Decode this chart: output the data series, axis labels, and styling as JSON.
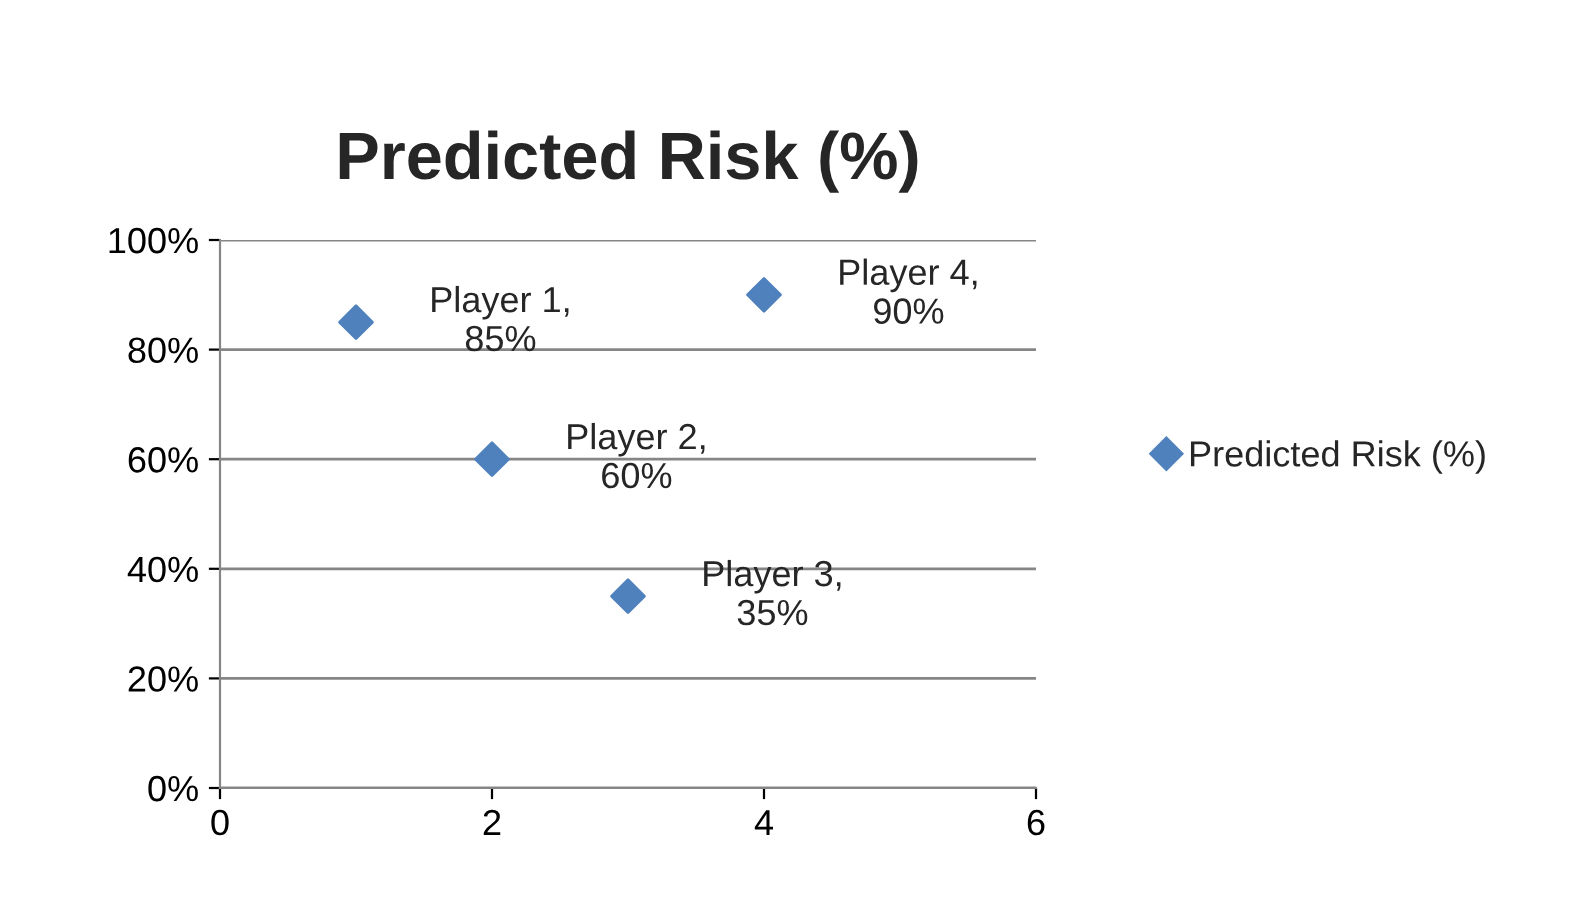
{
  "chart_data": {
    "type": "scatter",
    "title": "Predicted Risk (%)",
    "x": [
      1,
      2,
      3,
      4
    ],
    "series": [
      {
        "name": "Predicted Risk (%)",
        "color": "#4f81bd",
        "values": [
          85,
          60,
          35,
          90
        ]
      }
    ],
    "annotations": [
      {
        "text": "Player 1,\n85%",
        "x": 1,
        "y": 85
      },
      {
        "text": "Player 2,\n60%",
        "x": 2,
        "y": 60
      },
      {
        "text": "Player 3,\n35%",
        "x": 3,
        "y": 35
      },
      {
        "text": "Player 4,\n90%",
        "x": 4,
        "y": 90
      }
    ],
    "xlim": [
      0,
      6
    ],
    "xticks": [
      0,
      2,
      4,
      6
    ],
    "ylim": [
      0,
      100
    ],
    "yticks": [
      {
        "value": 0,
        "label": "0%"
      },
      {
        "value": 20,
        "label": "20%"
      },
      {
        "value": 40,
        "label": "40%"
      },
      {
        "value": 60,
        "label": "60%"
      },
      {
        "value": 80,
        "label": "80%"
      },
      {
        "value": 100,
        "label": "100%"
      }
    ],
    "grid": "y",
    "legend": "right",
    "marker": "diamond"
  }
}
